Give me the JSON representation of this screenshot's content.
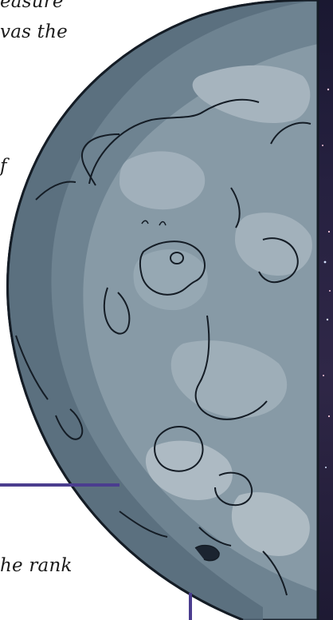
{
  "text_fragments": [
    "easure",
    "vas the",
    "f",
    "he rank"
  ],
  "colors": {
    "accent": "#4b3d8f",
    "moon_dark": "#4f6472",
    "moon_mid": "#6e8391",
    "moon_light": "#a9b7c0",
    "space": "#262140"
  },
  "icons": {
    "moon": "moon-illustration"
  }
}
